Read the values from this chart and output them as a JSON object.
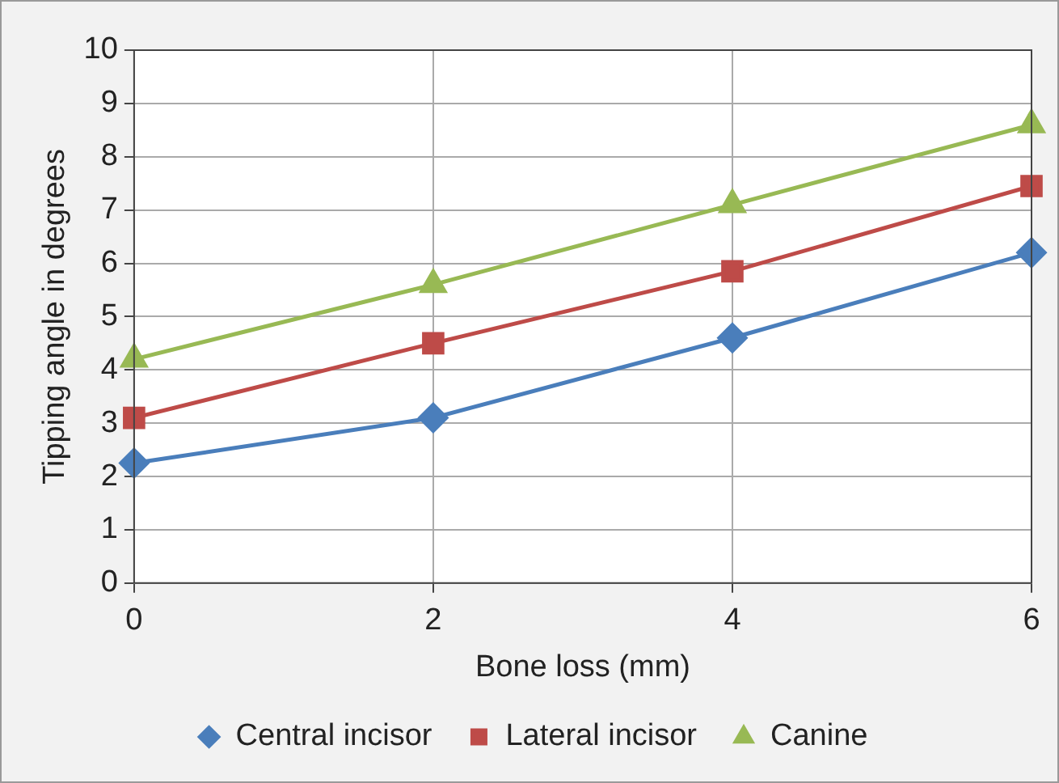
{
  "chart_data": {
    "type": "line",
    "xlabel": "Bone loss (mm)",
    "ylabel": "Tipping angle in degrees",
    "xlim": [
      0,
      6
    ],
    "xticks": [
      0,
      2,
      4,
      6
    ],
    "ylim": [
      0,
      10
    ],
    "yticks": [
      0,
      1,
      2,
      3,
      4,
      5,
      6,
      7,
      8,
      9,
      10
    ],
    "grid": true,
    "legend": "bottom",
    "series": [
      {
        "name": "Central incisor",
        "color": "#4a7ebb",
        "marker": "diamond",
        "x": [
          0,
          2,
          4,
          6
        ],
        "values": [
          2.25,
          3.1,
          4.6,
          6.2
        ]
      },
      {
        "name": "Lateral incisor",
        "color": "#be4b48",
        "marker": "square",
        "x": [
          0,
          2,
          4,
          6
        ],
        "values": [
          3.1,
          4.5,
          5.85,
          7.45
        ]
      },
      {
        "name": "Canine",
        "color": "#98b954",
        "marker": "triangle",
        "x": [
          0,
          2,
          4,
          6
        ],
        "values": [
          4.2,
          5.6,
          7.1,
          8.6
        ]
      }
    ]
  }
}
